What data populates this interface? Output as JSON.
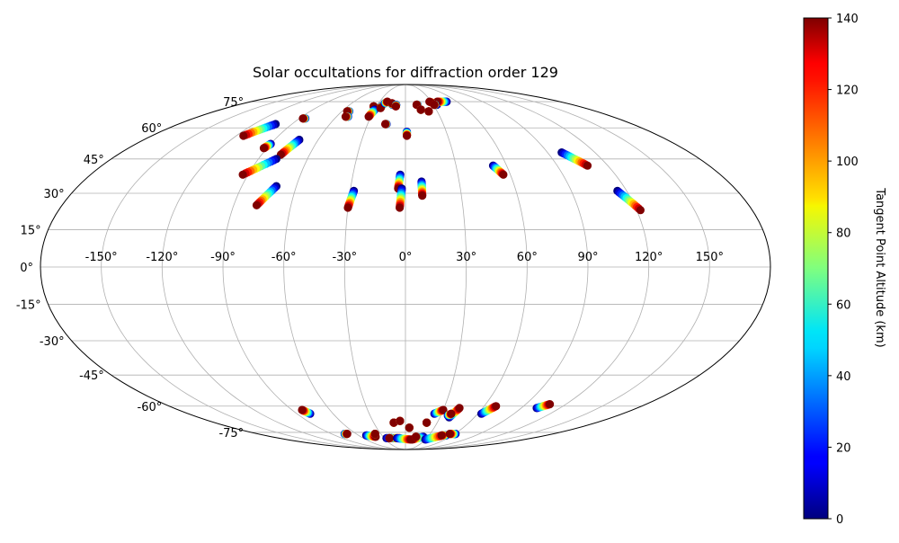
{
  "chart_data": {
    "type": "scatter",
    "projection": "mollweide",
    "title": "Solar occultations for diffraction order 129",
    "grid": true,
    "lon_ticks": [
      -150,
      -120,
      -90,
      -60,
      -30,
      0,
      30,
      60,
      90,
      120,
      150
    ],
    "lon_tick_labels": [
      "-150°",
      "-120°",
      "-90°",
      "-60°",
      "-30°",
      "0°",
      "30°",
      "60°",
      "90°",
      "120°",
      "150°"
    ],
    "lat_ticks": [
      75,
      60,
      45,
      30,
      15,
      0,
      -15,
      -30,
      -45,
      -60,
      -75
    ],
    "lat_tick_labels": [
      "75°",
      "60°",
      "45°",
      "30°",
      "15°",
      "0°",
      "-15°",
      "-30°",
      "-45°",
      "-60°",
      "-75°"
    ],
    "colorbar": {
      "label": "Tangent Point Altitude (km)",
      "range": [
        0,
        140
      ],
      "ticks": [
        0,
        20,
        40,
        60,
        80,
        100,
        120,
        140
      ],
      "tick_labels": [
        "0",
        "20",
        "40",
        "60",
        "80",
        "100",
        "120",
        "140"
      ],
      "colormap": "jet"
    },
    "tracks": [
      {
        "start": [
          -103,
          62
        ],
        "end": [
          -115,
          56
        ]
      },
      {
        "start": [
          -85,
          65
        ],
        "end": [
          -87,
          65
        ]
      },
      {
        "start": [
          -90,
          52
        ],
        "end": [
          -92,
          50
        ]
      },
      {
        "start": [
          -73,
          54
        ],
        "end": [
          -78,
          47
        ]
      },
      {
        "start": [
          -79,
          45
        ],
        "end": [
          -93,
          38
        ]
      },
      {
        "start": [
          -71,
          33
        ],
        "end": [
          -78,
          25
        ]
      },
      {
        "start": [
          -53,
          69
        ],
        "end": [
          -55,
          69
        ]
      },
      {
        "start": [
          -50,
          66
        ],
        "end": [
          -52,
          66
        ]
      },
      {
        "start": [
          -33,
          72
        ],
        "end": [
          -33,
          72
        ]
      },
      {
        "start": [
          -30,
          70
        ],
        "end": [
          -32,
          66
        ]
      },
      {
        "start": [
          -25,
          72
        ],
        "end": [
          -25,
          71
        ]
      },
      {
        "start": [
          -23,
          74
        ],
        "end": [
          -21,
          75
        ]
      },
      {
        "start": [
          -14,
          73
        ],
        "end": [
          -15,
          74
        ]
      },
      {
        "start": [
          -10,
          73
        ],
        "end": [
          -10,
          72
        ]
      },
      {
        "start": [
          -15,
          62
        ],
        "end": [
          -16,
          62
        ]
      },
      {
        "start": [
          1,
          58
        ],
        "end": [
          1,
          56
        ]
      },
      {
        "start": [
          -28,
          31
        ],
        "end": [
          -30,
          24
        ]
      },
      {
        "start": [
          -3,
          38
        ],
        "end": [
          -4,
          32
        ]
      },
      {
        "start": [
          -2,
          32
        ],
        "end": [
          -3,
          24
        ]
      },
      {
        "start": [
          9,
          35
        ],
        "end": [
          9,
          29
        ]
      },
      {
        "start": [
          13,
          73
        ],
        "end": [
          12,
          73
        ]
      },
      {
        "start": [
          15,
          70
        ],
        "end": [
          15,
          70
        ]
      },
      {
        "start": [
          22,
          69
        ],
        "end": [
          22,
          69
        ]
      },
      {
        "start": [
          34,
          73
        ],
        "end": [
          28,
          75
        ]
      },
      {
        "start": [
          48,
          75
        ],
        "end": [
          37,
          75
        ]
      },
      {
        "start": [
          32,
          73
        ],
        "end": [
          31,
          73
        ]
      },
      {
        "start": [
          52,
          42
        ],
        "end": [
          56,
          38
        ]
      },
      {
        "start": [
          99,
          48
        ],
        "end": [
          108,
          42
        ]
      },
      {
        "start": [
          115,
          31
        ],
        "end": [
          122,
          23
        ]
      },
      {
        "start": [
          -79,
          -64
        ],
        "end": [
          -82,
          -62
        ]
      },
      {
        "start": [
          -74,
          -76
        ],
        "end": [
          -71,
          -76
        ]
      },
      {
        "start": [
          -50,
          -77
        ],
        "end": [
          -40,
          -78
        ]
      },
      {
        "start": [
          -37,
          -76
        ],
        "end": [
          -37,
          -76
        ]
      },
      {
        "start": [
          -27,
          -79
        ],
        "end": [
          -8,
          -79
        ]
      },
      {
        "start": [
          -20,
          -79
        ],
        "end": [
          -23,
          -79
        ]
      },
      {
        "start": [
          -11,
          -69
        ],
        "end": [
          -11,
          -69
        ]
      },
      {
        "start": [
          -5,
          -68
        ],
        "end": [
          -5,
          -68
        ]
      },
      {
        "start": [
          4,
          -72
        ],
        "end": [
          4,
          -72
        ]
      },
      {
        "start": [
          -12,
          -79
        ],
        "end": [
          8,
          -80
        ]
      },
      {
        "start": [
          24,
          -78
        ],
        "end": [
          10,
          -80
        ]
      },
      {
        "start": [
          15,
          -78
        ],
        "end": [
          14,
          -78
        ]
      },
      {
        "start": [
          20,
          -69
        ],
        "end": [
          20,
          -69
        ]
      },
      {
        "start": [
          24,
          -64
        ],
        "end": [
          30,
          -62
        ]
      },
      {
        "start": [
          30,
          -80
        ],
        "end": [
          48,
          -77
        ]
      },
      {
        "start": [
          38,
          -66
        ],
        "end": [
          42,
          -61
        ]
      },
      {
        "start": [
          36,
          -65
        ],
        "end": [
          38,
          -64
        ]
      },
      {
        "start": [
          52,
          -77
        ],
        "end": [
          46,
          -77
        ]
      },
      {
        "start": [
          61,
          -76
        ],
        "end": [
          54,
          -76
        ]
      },
      {
        "start": [
          63,
          -64
        ],
        "end": [
          69,
          -60
        ]
      },
      {
        "start": [
          102,
          -61
        ],
        "end": [
          108,
          -59
        ]
      }
    ]
  }
}
